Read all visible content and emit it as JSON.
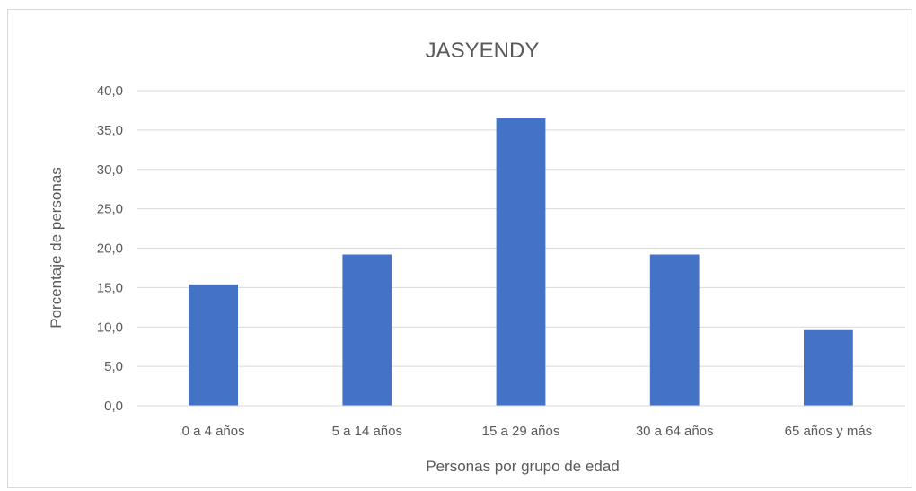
{
  "chart_data": {
    "type": "bar",
    "title": "JASYENDY",
    "xlabel": "Personas por grupo de edad",
    "ylabel": "Porcentaje de personas",
    "categories": [
      "0 a 4 años",
      "5 a 14 años",
      "15 a 29 años",
      "30 a 64 años",
      "65 años y más"
    ],
    "values": [
      15.4,
      19.2,
      36.5,
      19.2,
      9.6
    ],
    "ylim": [
      0,
      40
    ],
    "yticks": [
      "0,0",
      "5,0",
      "10,0",
      "15,0",
      "20,0",
      "25,0",
      "30,0",
      "35,0",
      "40,0"
    ],
    "grid": true,
    "legend": "none",
    "bar_color": "#4472c4"
  }
}
